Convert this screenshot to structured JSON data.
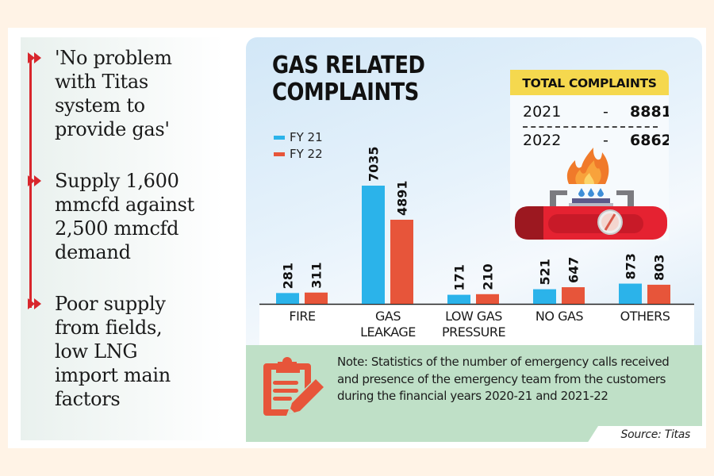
{
  "sidebar": {
    "bullets": [
      {
        "text": "'No problem\nwith Titas\nsystem to\nprovide gas'"
      },
      {
        "text": "Supply 1,600\nmmcfd against\n2,500 mmcfd\ndemand"
      },
      {
        "text": "Poor supply\nfrom fields,\nlow LNG\nimport main\nfactors"
      }
    ],
    "accent_color": "#d8262c"
  },
  "totals": {
    "heading": "TOTAL COMPLAINTS",
    "rows": [
      {
        "year": "2021",
        "separator": "-",
        "value": "8881"
      },
      {
        "year": "2022",
        "separator": "-",
        "value": "6862"
      }
    ]
  },
  "note": {
    "text": "Note: Statistics of the number of emergency calls received and presence of the emergency team from the customers during the financial years 2020-21 and 2021-22",
    "source": "Source: Titas"
  },
  "chart_data": {
    "type": "bar",
    "title": "GAS RELATED\nCOMPLAINTS",
    "xlabel": "",
    "ylabel": "",
    "categories": [
      "FIRE",
      "GAS\nLEAKAGE",
      "LOW GAS\nPRESSURE",
      "NO GAS",
      "OTHERS"
    ],
    "series": [
      {
        "name": "FY 21",
        "color": "#2bb3ea",
        "values": [
          281,
          7035,
          171,
          521,
          873
        ]
      },
      {
        "name": "FY 22",
        "color": "#e7553a",
        "values": [
          311,
          4891,
          210,
          647,
          803
        ]
      }
    ],
    "ylim": [
      0,
      7035
    ],
    "grid": false,
    "legend": "top-left",
    "data_labels": true
  }
}
